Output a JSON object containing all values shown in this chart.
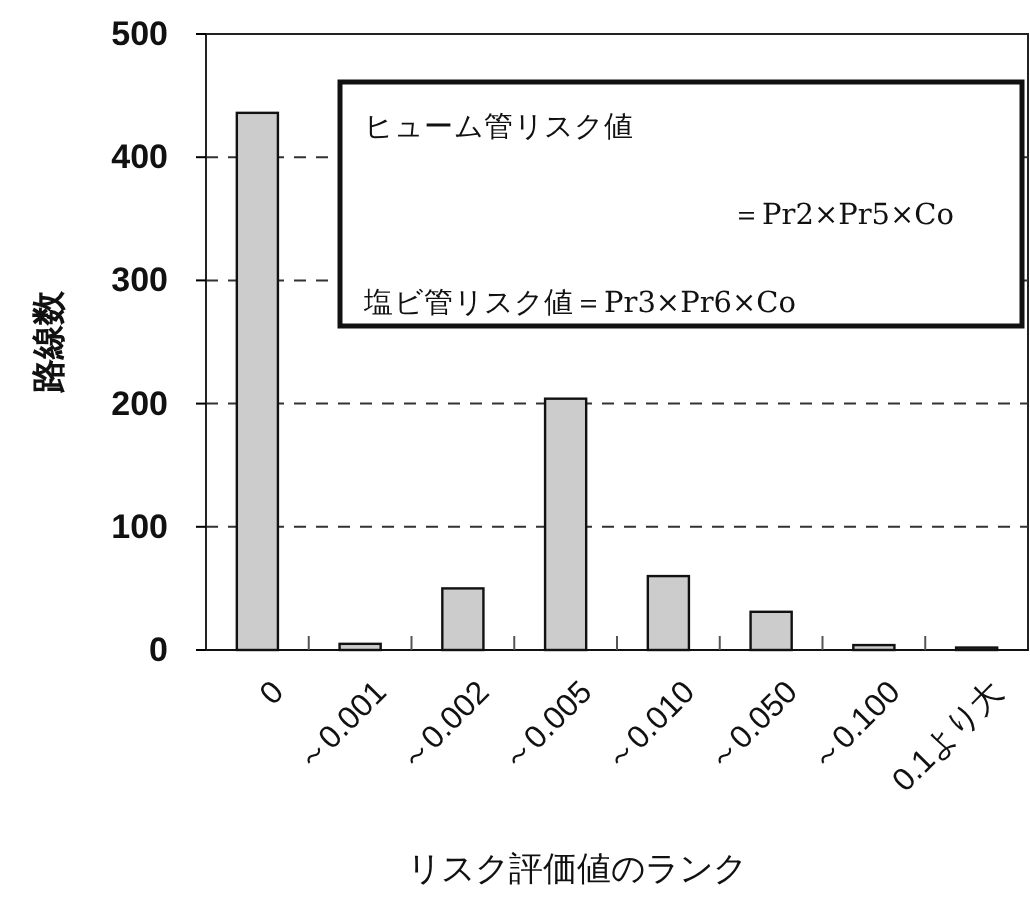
{
  "chart_data": {
    "type": "bar",
    "xlabel": "リスク評価値のランク",
    "ylabel": "路線数",
    "categories": [
      "0",
      "～0.001",
      "～0.002",
      "～0.005",
      "～0.010",
      "～0.050",
      "～0.100",
      "0.1より大"
    ],
    "values": [
      436,
      5,
      50,
      204,
      60,
      31,
      4,
      2
    ],
    "color": "#cccccc",
    "ylim": [
      0,
      500
    ],
    "yticks": [
      0,
      100,
      200,
      300,
      400,
      500
    ],
    "grid": "y",
    "line_style": "dashed",
    "annotations": [
      "ヒューム管リスク値",
      "＝Pr2×Pr5×Co",
      "塩ビ管リスク値＝Pr3×Pr6×Co"
    ]
  }
}
